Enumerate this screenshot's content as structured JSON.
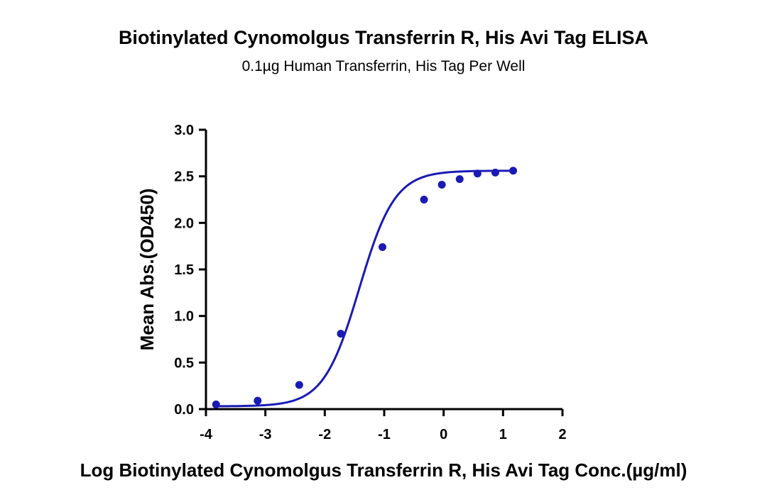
{
  "chart_data": {
    "type": "scatter",
    "title": "Biotinylated Cynomolgus Transferrin R, His Avi Tag ELISA",
    "subtitle": "0.1µg Human Transferrin, His Tag Per Well",
    "xlabel": "Log Biotinylated Cynomolgus Transferrin R, His Avi Tag Conc.(µg/ml)",
    "ylabel": "Mean Abs.(OD450)",
    "xlim": [
      -4,
      2
    ],
    "ylim": [
      0,
      3
    ],
    "x_ticks": [
      "-4",
      "-3",
      "-2",
      "-1",
      "0",
      "1",
      "2"
    ],
    "y_ticks": [
      "0.0",
      "0.5",
      "1.0",
      "1.5",
      "2.0",
      "2.5",
      "3.0"
    ],
    "grid": false,
    "color": "#1a1ab4",
    "series": [
      {
        "x": [
          -3.83,
          -3.13,
          -2.43,
          -1.73,
          -1.03,
          -0.33,
          -0.03,
          0.27,
          0.57,
          0.87,
          1.17
        ],
        "y": [
          0.05,
          0.09,
          0.26,
          0.81,
          1.74,
          2.25,
          2.41,
          2.47,
          2.53,
          2.54,
          2.56
        ]
      }
    ],
    "fit_curve": {
      "model": "4PL sigmoid",
      "bottom": 0.03,
      "top": 2.56,
      "log_ec50": -1.42,
      "hill": 1.45
    }
  }
}
